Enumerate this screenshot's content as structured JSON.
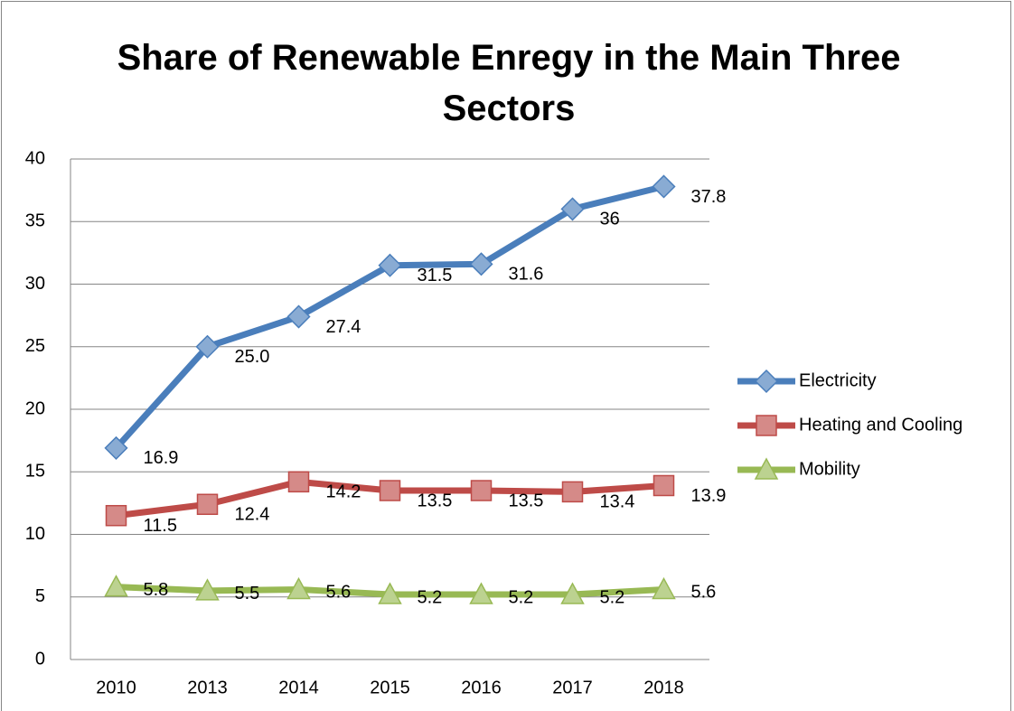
{
  "chart_data": {
    "type": "line",
    "title": "Share of Renewable Enregy in the Main Three Sectors",
    "categories": [
      "2010",
      "2013",
      "2014",
      "2015",
      "2016",
      "2017",
      "2018"
    ],
    "series": [
      {
        "name": "Electricity",
        "color": "#4a7ebb",
        "marker": "diamond",
        "values": [
          16.9,
          25,
          27.4,
          31.5,
          31.6,
          36,
          37.8
        ],
        "value_labels": [
          "16.9",
          "25.0",
          "27.4",
          "31.5",
          "31.6",
          "36",
          "37.8"
        ]
      },
      {
        "name": "Heating and Cooling",
        "color": "#be4b48",
        "marker": "square",
        "values": [
          11.5,
          12.4,
          14.2,
          13.5,
          13.5,
          13.4,
          13.9
        ]
      },
      {
        "name": "Mobility",
        "color": "#98b954",
        "marker": "triangle",
        "values": [
          5.8,
          5.5,
          5.6,
          5.2,
          5.2,
          5.2,
          5.6
        ]
      }
    ],
    "ylim": [
      0,
      40
    ],
    "yticks": [
      0,
      5,
      10,
      15,
      20,
      25,
      30,
      35,
      40
    ],
    "grid": true,
    "legend": "right"
  }
}
